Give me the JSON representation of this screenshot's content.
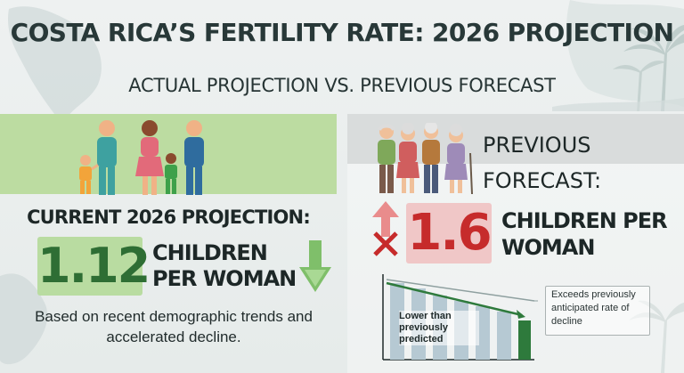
{
  "title": "COSTA RICA’S FERTILITY RATE: 2026 PROJECTION",
  "subtitle": "ACTUAL PROJECTION vs. PREVIOUS FORECAST",
  "current": {
    "heading": "CURRENT 2026 PROJECTION:",
    "value": "1.12",
    "unit": "CHILDREN PER WOMAN",
    "note": "Based on recent demographic trends and accelerated decline.",
    "accent": "#2e6e34"
  },
  "previous": {
    "heading": "PREVIOUS FORECAST:",
    "value": "1.6",
    "unit": "CHILDREN PER WOMAN",
    "accent": "#c62b2b"
  },
  "chart": {
    "label": "Lower than previously predicted",
    "callout": "Exceeds previously anticipated rate of decline"
  },
  "icons": [
    "family-icon",
    "elderly-group-icon",
    "down-arrow-icon",
    "up-arrow-crossed-icon",
    "palm-tree-icon",
    "costa-rica-map-icon"
  ]
}
